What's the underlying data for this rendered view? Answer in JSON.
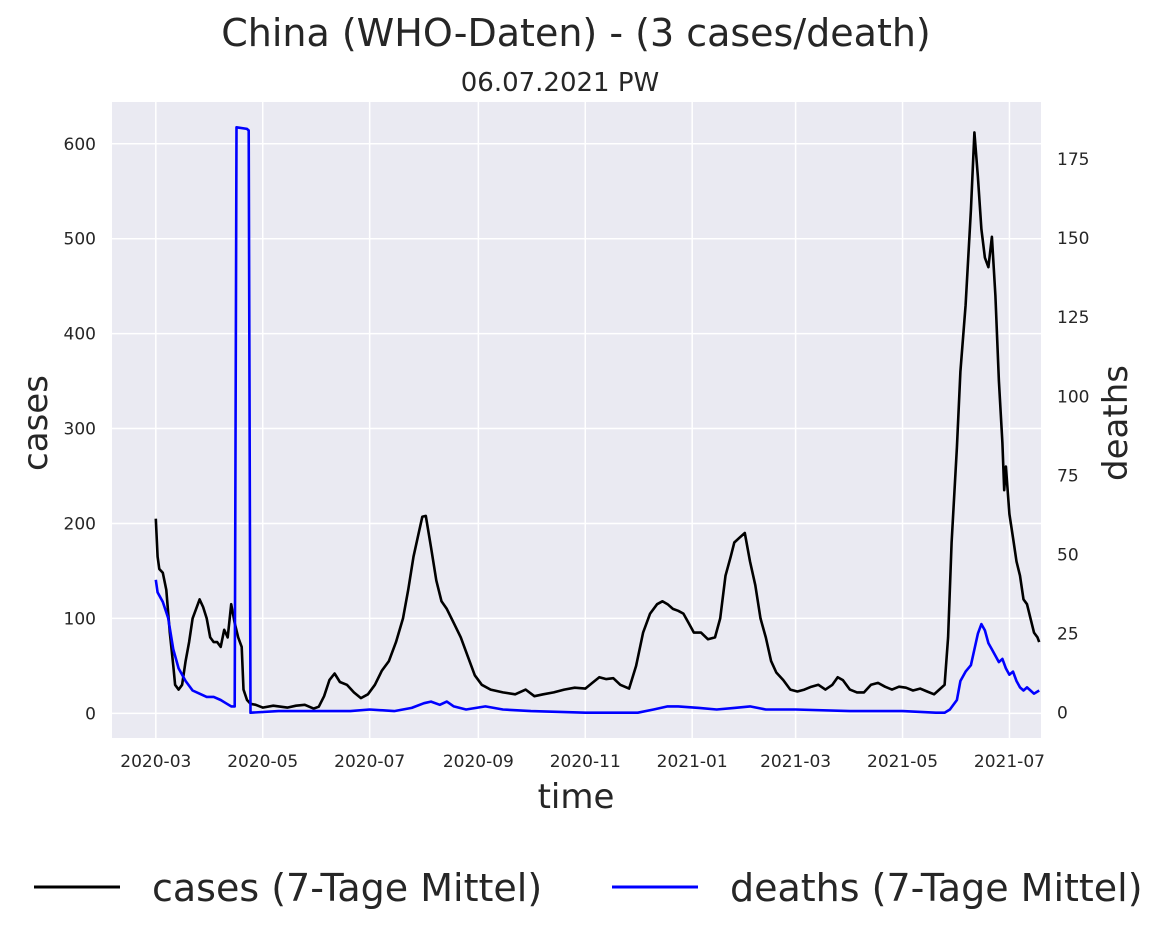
{
  "chart_data": {
    "type": "line",
    "title": "China (WHO-Daten) - (3 cases/death)",
    "subtitle": "06.07.2021 PW",
    "xlabel": "time",
    "ylabel_left": "cases",
    "ylabel_right": "deaths",
    "ylim_left": [
      -26,
      644
    ],
    "ylim_right": [
      -8,
      193
    ],
    "left_ticks": [
      0,
      100,
      200,
      300,
      400,
      500,
      600
    ],
    "right_ticks": [
      0,
      25,
      50,
      75,
      100,
      125,
      150,
      175
    ],
    "xlim": [
      "2020-02-05",
      "2021-07-19"
    ],
    "x_ticks": [
      {
        "date": "2020-03-01",
        "label": "2020-03"
      },
      {
        "date": "2020-05-01",
        "label": "2020-05"
      },
      {
        "date": "2020-07-01",
        "label": "2020-07"
      },
      {
        "date": "2020-09-01",
        "label": "2020-09"
      },
      {
        "date": "2020-11-01",
        "label": "2020-11"
      },
      {
        "date": "2021-01-01",
        "label": "2021-01"
      },
      {
        "date": "2021-03-01",
        "label": "2021-03"
      },
      {
        "date": "2021-05-01",
        "label": "2021-05"
      },
      {
        "date": "2021-07-01",
        "label": "2021-07"
      }
    ],
    "grid": true,
    "legend_position": "bottom",
    "colors": {
      "cases": "#000000",
      "deaths": "#0000ff",
      "background": "#eaeaf2",
      "grid": "#ffffff",
      "deaths_label": "#0000ff"
    },
    "series": [
      {
        "name": "cases (7-Tage Mittel)",
        "axis": "left",
        "color": "#000000",
        "points": [
          [
            "2020-03-01",
            205
          ],
          [
            "2020-03-02",
            165
          ],
          [
            "2020-03-03",
            152
          ],
          [
            "2020-03-05",
            148
          ],
          [
            "2020-03-07",
            130
          ],
          [
            "2020-03-09",
            85
          ],
          [
            "2020-03-11",
            50
          ],
          [
            "2020-03-12",
            30
          ],
          [
            "2020-03-14",
            25
          ],
          [
            "2020-03-16",
            30
          ],
          [
            "2020-03-18",
            55
          ],
          [
            "2020-03-20",
            75
          ],
          [
            "2020-03-22",
            100
          ],
          [
            "2020-03-24",
            110
          ],
          [
            "2020-03-26",
            120
          ],
          [
            "2020-03-28",
            112
          ],
          [
            "2020-03-30",
            100
          ],
          [
            "2020-04-01",
            80
          ],
          [
            "2020-04-03",
            75
          ],
          [
            "2020-04-05",
            75
          ],
          [
            "2020-04-07",
            70
          ],
          [
            "2020-04-09",
            88
          ],
          [
            "2020-04-11",
            80
          ],
          [
            "2020-04-13",
            115
          ],
          [
            "2020-04-15",
            95
          ],
          [
            "2020-04-17",
            80
          ],
          [
            "2020-04-19",
            70
          ],
          [
            "2020-04-20",
            25
          ],
          [
            "2020-04-22",
            14
          ],
          [
            "2020-04-24",
            10
          ],
          [
            "2020-04-27",
            9
          ],
          [
            "2020-05-01",
            6
          ],
          [
            "2020-05-07",
            8
          ],
          [
            "2020-05-15",
            6
          ],
          [
            "2020-05-20",
            8
          ],
          [
            "2020-05-25",
            9
          ],
          [
            "2020-05-30",
            5
          ],
          [
            "2020-06-02",
            7
          ],
          [
            "2020-06-05",
            18
          ],
          [
            "2020-06-08",
            35
          ],
          [
            "2020-06-11",
            42
          ],
          [
            "2020-06-14",
            33
          ],
          [
            "2020-06-18",
            30
          ],
          [
            "2020-06-22",
            22
          ],
          [
            "2020-06-26",
            16
          ],
          [
            "2020-06-30",
            20
          ],
          [
            "2020-07-04",
            30
          ],
          [
            "2020-07-08",
            45
          ],
          [
            "2020-07-12",
            55
          ],
          [
            "2020-07-16",
            75
          ],
          [
            "2020-07-20",
            100
          ],
          [
            "2020-07-23",
            130
          ],
          [
            "2020-07-26",
            165
          ],
          [
            "2020-07-29",
            190
          ],
          [
            "2020-07-31",
            207
          ],
          [
            "2020-08-02",
            208
          ],
          [
            "2020-08-05",
            175
          ],
          [
            "2020-08-08",
            140
          ],
          [
            "2020-08-11",
            118
          ],
          [
            "2020-08-14",
            110
          ],
          [
            "2020-08-18",
            95
          ],
          [
            "2020-08-22",
            80
          ],
          [
            "2020-08-26",
            60
          ],
          [
            "2020-08-30",
            40
          ],
          [
            "2020-09-03",
            30
          ],
          [
            "2020-09-08",
            25
          ],
          [
            "2020-09-15",
            22
          ],
          [
            "2020-09-22",
            20
          ],
          [
            "2020-09-28",
            25
          ],
          [
            "2020-10-03",
            18
          ],
          [
            "2020-10-08",
            20
          ],
          [
            "2020-10-14",
            22
          ],
          [
            "2020-10-20",
            25
          ],
          [
            "2020-10-26",
            27
          ],
          [
            "2020-11-01",
            26
          ],
          [
            "2020-11-05",
            32
          ],
          [
            "2020-11-09",
            38
          ],
          [
            "2020-11-13",
            36
          ],
          [
            "2020-11-17",
            37
          ],
          [
            "2020-11-21",
            30
          ],
          [
            "2020-11-26",
            26
          ],
          [
            "2020-11-30",
            50
          ],
          [
            "2020-12-04",
            85
          ],
          [
            "2020-12-08",
            105
          ],
          [
            "2020-12-12",
            115
          ],
          [
            "2020-12-15",
            118
          ],
          [
            "2020-12-18",
            115
          ],
          [
            "2020-12-21",
            110
          ],
          [
            "2020-12-24",
            108
          ],
          [
            "2020-12-27",
            105
          ],
          [
            "2020-12-30",
            95
          ],
          [
            "2021-01-02",
            85
          ],
          [
            "2021-01-06",
            85
          ],
          [
            "2021-01-10",
            78
          ],
          [
            "2021-01-14",
            80
          ],
          [
            "2021-01-17",
            100
          ],
          [
            "2021-01-20",
            145
          ],
          [
            "2021-01-23",
            165
          ],
          [
            "2021-01-25",
            180
          ],
          [
            "2021-01-28",
            185
          ],
          [
            "2021-01-31",
            190
          ],
          [
            "2021-02-03",
            160
          ],
          [
            "2021-02-06",
            135
          ],
          [
            "2021-02-09",
            100
          ],
          [
            "2021-02-12",
            80
          ],
          [
            "2021-02-15",
            55
          ],
          [
            "2021-02-18",
            43
          ],
          [
            "2021-02-22",
            35
          ],
          [
            "2021-02-26",
            25
          ],
          [
            "2021-03-02",
            23
          ],
          [
            "2021-03-06",
            25
          ],
          [
            "2021-03-10",
            28
          ],
          [
            "2021-03-14",
            30
          ],
          [
            "2021-03-18",
            25
          ],
          [
            "2021-03-22",
            30
          ],
          [
            "2021-03-25",
            38
          ],
          [
            "2021-03-28",
            35
          ],
          [
            "2021-04-01",
            25
          ],
          [
            "2021-04-05",
            22
          ],
          [
            "2021-04-09",
            22
          ],
          [
            "2021-04-13",
            30
          ],
          [
            "2021-04-17",
            32
          ],
          [
            "2021-04-21",
            28
          ],
          [
            "2021-04-25",
            25
          ],
          [
            "2021-04-29",
            28
          ],
          [
            "2021-05-03",
            27
          ],
          [
            "2021-05-07",
            24
          ],
          [
            "2021-05-11",
            26
          ],
          [
            "2021-05-15",
            23
          ],
          [
            "2021-05-19",
            20
          ],
          [
            "2021-05-22",
            25
          ],
          [
            "2021-05-25",
            30
          ],
          [
            "2021-05-27",
            80
          ],
          [
            "2021-05-29",
            180
          ],
          [
            "2021-06-01",
            280
          ],
          [
            "2021-06-03",
            360
          ],
          [
            "2021-06-06",
            430
          ],
          [
            "2021-06-09",
            530
          ],
          [
            "2021-06-11",
            612
          ],
          [
            "2021-06-13",
            565
          ],
          [
            "2021-06-15",
            510
          ],
          [
            "2021-06-17",
            480
          ],
          [
            "2021-06-19",
            470
          ],
          [
            "2021-06-21",
            502
          ],
          [
            "2021-06-23",
            440
          ],
          [
            "2021-06-25",
            350
          ],
          [
            "2021-06-27",
            285
          ],
          [
            "2021-06-28",
            235
          ],
          [
            "2021-06-29",
            260
          ],
          [
            "2021-07-01",
            210
          ],
          [
            "2021-07-03",
            185
          ],
          [
            "2021-07-05",
            160
          ],
          [
            "2021-07-07",
            145
          ],
          [
            "2021-07-09",
            120
          ],
          [
            "2021-07-11",
            115
          ],
          [
            "2021-07-13",
            100
          ],
          [
            "2021-07-15",
            85
          ],
          [
            "2021-07-17",
            80
          ],
          [
            "2021-07-18",
            75
          ]
        ]
      },
      {
        "name": "deaths (7-Tage Mittel)",
        "axis": "right",
        "color": "#0000ff",
        "points": [
          [
            "2020-03-01",
            42
          ],
          [
            "2020-03-02",
            38
          ],
          [
            "2020-03-05",
            35
          ],
          [
            "2020-03-08",
            30
          ],
          [
            "2020-03-11",
            20
          ],
          [
            "2020-03-14",
            14
          ],
          [
            "2020-03-18",
            10
          ],
          [
            "2020-03-22",
            7
          ],
          [
            "2020-03-26",
            6
          ],
          [
            "2020-03-30",
            5
          ],
          [
            "2020-04-03",
            5
          ],
          [
            "2020-04-07",
            4
          ],
          [
            "2020-04-10",
            3
          ],
          [
            "2020-04-13",
            2
          ],
          [
            "2020-04-15",
            2
          ],
          [
            "2020-04-16",
            185
          ],
          [
            "2020-04-22",
            184.5
          ],
          [
            "2020-04-23",
            184
          ],
          [
            "2020-04-24",
            0
          ],
          [
            "2020-05-10",
            0.5
          ],
          [
            "2020-06-01",
            0.5
          ],
          [
            "2020-06-20",
            0.5
          ],
          [
            "2020-07-01",
            1
          ],
          [
            "2020-07-15",
            0.5
          ],
          [
            "2020-07-25",
            1.5
          ],
          [
            "2020-08-01",
            3
          ],
          [
            "2020-08-05",
            3.5
          ],
          [
            "2020-08-10",
            2.5
          ],
          [
            "2020-08-14",
            3.5
          ],
          [
            "2020-08-18",
            2
          ],
          [
            "2020-08-25",
            1
          ],
          [
            "2020-09-05",
            2
          ],
          [
            "2020-09-15",
            1
          ],
          [
            "2020-10-01",
            0.5
          ],
          [
            "2020-11-01",
            0
          ],
          [
            "2020-12-01",
            0
          ],
          [
            "2020-12-10",
            1
          ],
          [
            "2020-12-18",
            2
          ],
          [
            "2020-12-24",
            2
          ],
          [
            "2021-01-05",
            1.5
          ],
          [
            "2021-01-15",
            1
          ],
          [
            "2021-01-25",
            1.5
          ],
          [
            "2021-02-03",
            2
          ],
          [
            "2021-02-12",
            1
          ],
          [
            "2021-03-01",
            1
          ],
          [
            "2021-04-01",
            0.5
          ],
          [
            "2021-05-01",
            0.5
          ],
          [
            "2021-05-20",
            0
          ],
          [
            "2021-05-25",
            0
          ],
          [
            "2021-05-28",
            1
          ],
          [
            "2021-06-01",
            4
          ],
          [
            "2021-06-03",
            10
          ],
          [
            "2021-06-06",
            13
          ],
          [
            "2021-06-09",
            15
          ],
          [
            "2021-06-11",
            20
          ],
          [
            "2021-06-13",
            25
          ],
          [
            "2021-06-15",
            28
          ],
          [
            "2021-06-17",
            26
          ],
          [
            "2021-06-19",
            22
          ],
          [
            "2021-06-21",
            20
          ],
          [
            "2021-06-23",
            18
          ],
          [
            "2021-06-25",
            16
          ],
          [
            "2021-06-27",
            17
          ],
          [
            "2021-06-29",
            14
          ],
          [
            "2021-07-01",
            12
          ],
          [
            "2021-07-03",
            13
          ],
          [
            "2021-07-05",
            10
          ],
          [
            "2021-07-07",
            8
          ],
          [
            "2021-07-09",
            7
          ],
          [
            "2021-07-11",
            8
          ],
          [
            "2021-07-13",
            7
          ],
          [
            "2021-07-15",
            6
          ],
          [
            "2021-07-18",
            7
          ]
        ]
      }
    ]
  }
}
